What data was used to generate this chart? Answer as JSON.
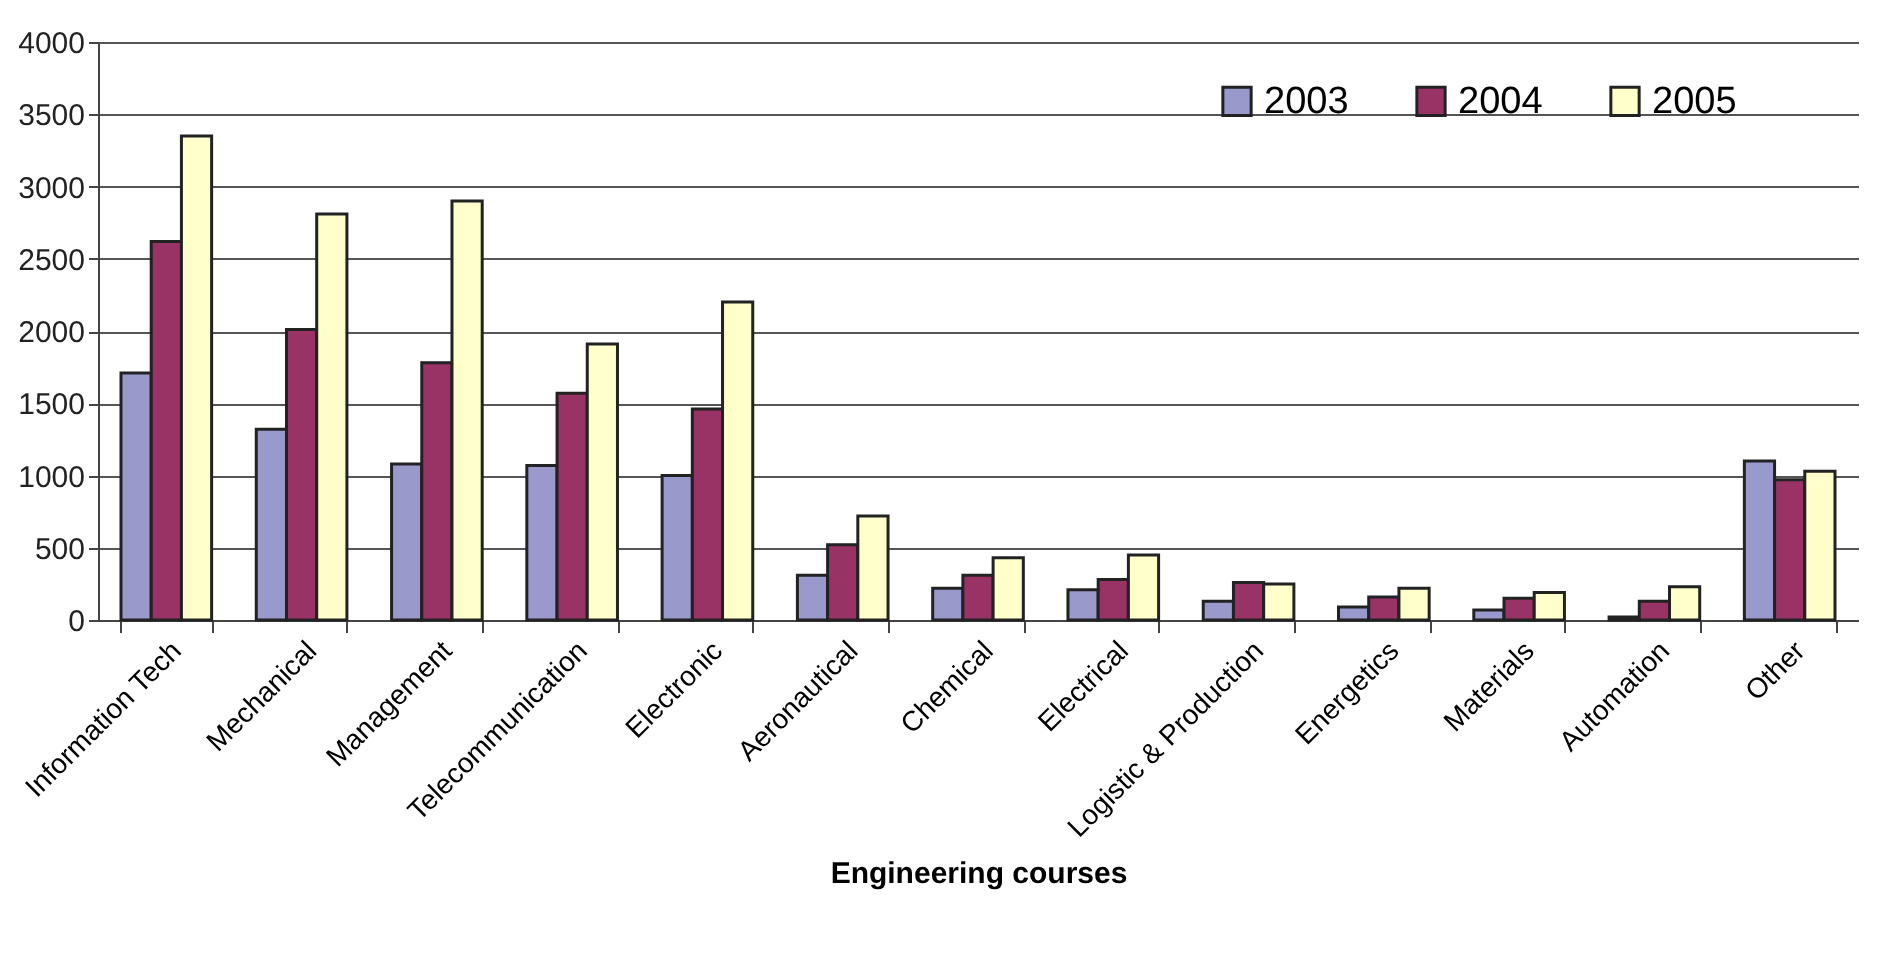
{
  "chart_data": {
    "type": "bar",
    "xlabel": "Engineering courses",
    "categories": [
      "Information Tech",
      "Mechanical",
      "Management",
      "Telecommunication",
      "Electronic",
      "Aeronautical",
      "Chemical",
      "Electrical",
      "Logistic & Production",
      "Energetics",
      "Materials",
      "Automation",
      "Other"
    ],
    "series": [
      {
        "name": "2003",
        "color": "#9999cc",
        "values": [
          1710,
          1320,
          1080,
          1070,
          1000,
          310,
          220,
          210,
          130,
          90,
          70,
          20,
          1100
        ]
      },
      {
        "name": "2004",
        "color": "#993366",
        "values": [
          2620,
          2010,
          1780,
          1570,
          1460,
          520,
          310,
          280,
          260,
          160,
          150,
          130,
          970
        ]
      },
      {
        "name": "2005",
        "color": "#ffffcc",
        "values": [
          3350,
          2810,
          2900,
          1910,
          2200,
          720,
          430,
          450,
          250,
          220,
          190,
          230,
          1030
        ]
      }
    ],
    "ylim": [
      0,
      4000
    ],
    "yticks": [
      0,
      500,
      1000,
      1500,
      2000,
      2500,
      3000,
      3500,
      4000
    ],
    "grid": "y",
    "legend": "top"
  }
}
